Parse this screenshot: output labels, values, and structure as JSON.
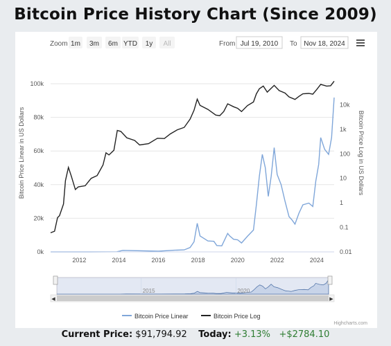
{
  "page": {
    "title": "Bitcoin Price History Chart (Since 2009)"
  },
  "toolbar": {
    "zoom_label": "Zoom",
    "buttons": [
      "1m",
      "3m",
      "6m",
      "YTD",
      "1y",
      "All"
    ],
    "from_label": "From",
    "from_value": "Jul 19, 2010",
    "to_label": "To",
    "to_value": "Nov 18, 2024",
    "menu_icon": "hamburger-menu-icon"
  },
  "footer": {
    "current_label": "Current Price:",
    "current_value": "$91,794.92",
    "today_label": "Today:",
    "today_pct": "+3.13%",
    "today_abs": "+$2784.10"
  },
  "credits": "Highcharts.com",
  "colors": {
    "linear": "#7fa6d9",
    "log": "#222222",
    "positive": "#2e7d32"
  },
  "chart_data": {
    "type": "line",
    "title": "Bitcoin Price History Chart (Since 2009)",
    "xlim": [
      2010.55,
      2024.88
    ],
    "x_ticks": [
      "2012",
      "2014",
      "2016",
      "2018",
      "2020",
      "2022",
      "2024"
    ],
    "y_left": {
      "label": "Bitcoin Price Linear in US Dollars",
      "ylim": [
        0,
        100000
      ],
      "ticks": [
        "0k",
        "20k",
        "40k",
        "60k",
        "80k",
        "100k"
      ]
    },
    "y_right": {
      "label": "Bitcoin Price Log in US Dollars",
      "scale": "log",
      "ylim": [
        0.01,
        100000
      ],
      "ticks": [
        "0.01",
        "0.1",
        "1",
        "10",
        "100",
        "1k",
        "10k"
      ]
    },
    "legend": [
      "Bitcoin Price Linear",
      "Bitcoin Price Log"
    ],
    "legend_position": "bottom-center",
    "navigator_ticks": [
      "2015",
      "2020"
    ],
    "series": [
      {
        "name": "Bitcoin Price Log",
        "axis": "right",
        "x": [
          2010.55,
          2010.75,
          2010.9,
          2011.0,
          2011.2,
          2011.3,
          2011.45,
          2011.6,
          2011.8,
          2011.95,
          2012.3,
          2012.6,
          2012.9,
          2013.2,
          2013.35,
          2013.5,
          2013.75,
          2013.92,
          2014.1,
          2014.4,
          2014.8,
          2015.05,
          2015.5,
          2015.95,
          2016.3,
          2016.6,
          2016.95,
          2017.3,
          2017.6,
          2017.8,
          2017.96,
          2018.1,
          2018.5,
          2018.9,
          2019.1,
          2019.3,
          2019.5,
          2019.8,
          2020.0,
          2020.2,
          2020.5,
          2020.8,
          2020.95,
          2021.1,
          2021.3,
          2021.5,
          2021.85,
          2022.1,
          2022.4,
          2022.6,
          2022.9,
          2023.1,
          2023.3,
          2023.6,
          2023.8,
          2024.0,
          2024.2,
          2024.5,
          2024.7,
          2024.88
        ],
        "values": [
          0.06,
          0.07,
          0.25,
          0.3,
          0.9,
          8,
          28,
          12,
          3.5,
          4.5,
          5,
          10,
          13,
          35,
          110,
          90,
          140,
          900,
          820,
          450,
          350,
          230,
          260,
          430,
          420,
          650,
          950,
          1200,
          2600,
          6000,
          17000,
          9500,
          6500,
          3800,
          3600,
          5300,
          11000,
          8300,
          7200,
          5300,
          9300,
          13000,
          28000,
          45000,
          58000,
          33000,
          62000,
          38000,
          30000,
          21000,
          16500,
          22000,
          28000,
          29000,
          27000,
          42000,
          68000,
          58000,
          60000,
          91794.92
        ]
      },
      {
        "name": "Bitcoin Price Linear",
        "axis": "left",
        "x": [
          2010.55,
          2012.5,
          2013.9,
          2014.2,
          2016.0,
          2016.8,
          2017.3,
          2017.6,
          2017.8,
          2017.96,
          2018.1,
          2018.3,
          2018.5,
          2018.8,
          2018.95,
          2019.2,
          2019.5,
          2019.6,
          2019.8,
          2020.0,
          2020.2,
          2020.5,
          2020.8,
          2020.95,
          2021.1,
          2021.25,
          2021.4,
          2021.55,
          2021.7,
          2021.85,
          2022.0,
          2022.2,
          2022.4,
          2022.6,
          2022.75,
          2022.9,
          2023.1,
          2023.3,
          2023.6,
          2023.8,
          2023.95,
          2024.1,
          2024.2,
          2024.4,
          2024.6,
          2024.75,
          2024.88
        ],
        "values": [
          0,
          10,
          100,
          900,
          400,
          1000,
          1200,
          2600,
          6000,
          17000,
          9500,
          8000,
          6500,
          6300,
          3800,
          3600,
          11000,
          9500,
          7500,
          7200,
          5300,
          9300,
          13000,
          28000,
          45000,
          58000,
          50000,
          33000,
          45000,
          62000,
          46000,
          40000,
          30000,
          21000,
          19000,
          16500,
          23000,
          28000,
          29000,
          27000,
          42000,
          52000,
          68000,
          61000,
          58000,
          68000,
          91794.92
        ]
      }
    ]
  }
}
